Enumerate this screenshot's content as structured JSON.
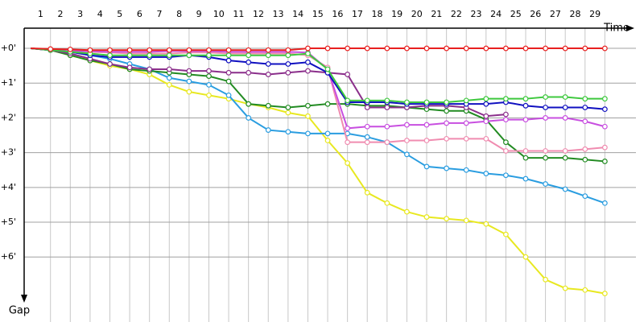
{
  "chart_data": {
    "type": "line",
    "x_label": "Time",
    "y_label": "Gap",
    "x": [
      0,
      1,
      2,
      3,
      4,
      5,
      6,
      7,
      8,
      9,
      10,
      11,
      12,
      13,
      14,
      15,
      16,
      17,
      18,
      19,
      20,
      21,
      22,
      23,
      24,
      25,
      26,
      27,
      28,
      29
    ],
    "xlim": [
      -0.33,
      30.57
    ],
    "xticks": [
      1,
      2,
      3,
      4,
      5,
      6,
      7,
      8,
      9,
      10,
      11,
      12,
      13,
      14,
      15,
      16,
      17,
      18,
      19,
      20,
      21,
      22,
      23,
      24,
      25,
      26,
      27,
      28,
      29
    ],
    "ylim": [
      -0.58,
      7.87
    ],
    "yticks": [
      {
        "value": 0,
        "label": "+0'"
      },
      {
        "value": 1,
        "label": "+1'"
      },
      {
        "value": 2,
        "label": "+2'"
      },
      {
        "value": 3,
        "label": "+3'"
      },
      {
        "value": 4,
        "label": "+4'"
      },
      {
        "value": 5,
        "label": "+5'"
      },
      {
        "value": 6,
        "label": "+6'"
      }
    ],
    "y_inverted": true,
    "grid": true,
    "series": [
      {
        "color": "#e8e820",
        "values": [
          0,
          0.05,
          0.2,
          0.35,
          0.5,
          0.6,
          0.75,
          1.05,
          1.25,
          1.35,
          1.45,
          1.6,
          1.7,
          1.85,
          1.95,
          2.65,
          3.3,
          4.15,
          4.45,
          4.7,
          4.85,
          4.9,
          4.95,
          5.05,
          5.35,
          6.0,
          6.65,
          6.9,
          6.95,
          7.05
        ]
      },
      {
        "color": "#2a9de0",
        "values": [
          0,
          0.05,
          0.1,
          0.2,
          0.3,
          0.45,
          0.6,
          0.85,
          0.95,
          1.05,
          1.35,
          2.0,
          2.35,
          2.4,
          2.45,
          2.45,
          2.45,
          2.55,
          2.7,
          3.05,
          3.4,
          3.45,
          3.5,
          3.6,
          3.65,
          3.75,
          3.9,
          4.05,
          4.25,
          4.45
        ]
      },
      {
        "color": "#228b22",
        "values": [
          0,
          0.05,
          0.2,
          0.35,
          0.45,
          0.6,
          0.65,
          0.7,
          0.75,
          0.8,
          0.95,
          1.6,
          1.65,
          1.7,
          1.65,
          1.6,
          1.6,
          1.65,
          1.65,
          1.7,
          1.75,
          1.8,
          1.8,
          2.05,
          2.7,
          3.15,
          3.15,
          3.15,
          3.2,
          3.25
        ]
      },
      {
        "color": "#f08cb0",
        "values": [
          0,
          0.05,
          0.1,
          0.1,
          0.12,
          0.15,
          0.15,
          0.15,
          0.12,
          0.12,
          0.15,
          0.15,
          0.15,
          0.15,
          0.2,
          0.55,
          2.7,
          2.7,
          2.7,
          2.65,
          2.65,
          2.6,
          2.6,
          2.6,
          2.95,
          2.95,
          2.95,
          2.95,
          2.9,
          2.85
        ]
      },
      {
        "color": "#c84fe0",
        "values": [
          0,
          0.05,
          0.08,
          0.08,
          0.1,
          0.1,
          0.1,
          0.08,
          0.08,
          0.08,
          0.1,
          0.1,
          0.1,
          0.1,
          0.12,
          0.6,
          2.3,
          2.25,
          2.25,
          2.2,
          2.2,
          2.15,
          2.15,
          2.1,
          2.05,
          2.05,
          2.0,
          2.0,
          2.1,
          2.25
        ]
      },
      {
        "color": "#8b2f8b",
        "values": [
          0,
          0.05,
          0.15,
          0.3,
          0.45,
          0.55,
          0.6,
          0.6,
          0.65,
          0.65,
          0.7,
          0.7,
          0.75,
          0.7,
          0.65,
          0.7,
          0.75,
          1.7,
          1.7,
          1.7,
          1.65,
          1.65,
          1.7,
          1.95,
          1.9,
          null,
          null,
          null,
          null,
          null
        ]
      },
      {
        "color": "#1010c0",
        "values": [
          0,
          0.05,
          0.1,
          0.2,
          0.25,
          0.25,
          0.25,
          0.25,
          0.2,
          0.25,
          0.35,
          0.4,
          0.45,
          0.45,
          0.4,
          0.7,
          1.55,
          1.55,
          1.55,
          1.6,
          1.6,
          1.6,
          1.6,
          1.6,
          1.55,
          1.65,
          1.7,
          1.7,
          1.7,
          1.75
        ]
      },
      {
        "color": "#3ec83e",
        "values": [
          0,
          0.05,
          0.1,
          0.15,
          0.2,
          0.2,
          0.2,
          0.2,
          0.2,
          0.2,
          0.2,
          0.2,
          0.2,
          0.2,
          0.15,
          0.6,
          1.5,
          1.5,
          1.5,
          1.55,
          1.55,
          1.55,
          1.5,
          1.45,
          1.45,
          1.45,
          1.4,
          1.4,
          1.45,
          1.45
        ]
      },
      {
        "color": "#e82020",
        "values": [
          0,
          0.02,
          0.03,
          0.05,
          0.05,
          0.05,
          0.05,
          0.05,
          0.05,
          0.05,
          0.05,
          0.05,
          0.05,
          0.05,
          0,
          0,
          0,
          0,
          0,
          0,
          0,
          0,
          0,
          0,
          0,
          0,
          0,
          0,
          0,
          0
        ]
      }
    ]
  }
}
